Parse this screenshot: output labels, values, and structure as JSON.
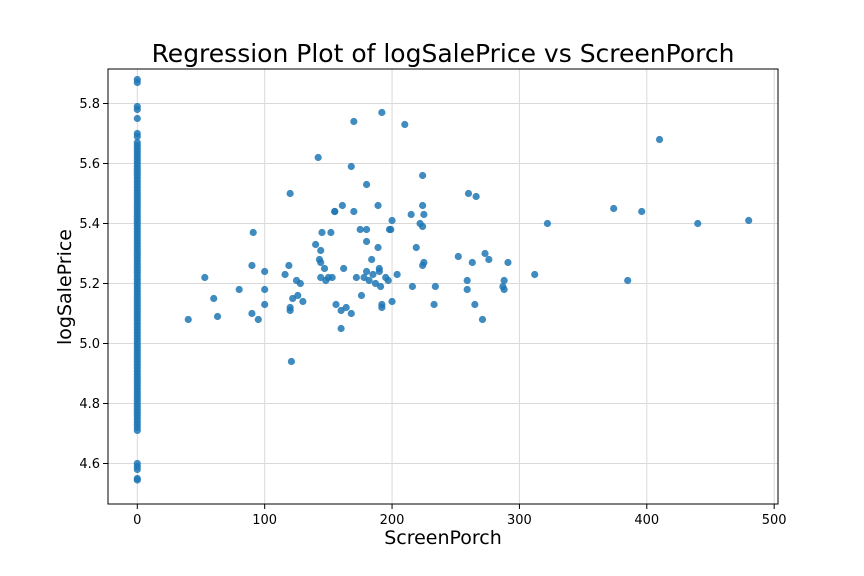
{
  "chart_data": {
    "type": "scatter",
    "title": "Regression Plot of logSalePrice vs ScreenPorch",
    "xlabel": "ScreenPorch",
    "ylabel": "logSalePrice",
    "xlim": [
      -23,
      503
    ],
    "ylim": [
      4.465,
      5.915
    ],
    "xticks": [
      0,
      100,
      200,
      300,
      400,
      500
    ],
    "yticks": [
      4.6,
      4.8,
      5.0,
      5.2,
      5.4,
      5.6,
      5.8
    ],
    "ytick_labels": [
      "4.6",
      "4.8",
      "5.0",
      "5.2",
      "5.4",
      "5.6",
      "5.8"
    ],
    "grid": true,
    "point_color": "#1f77b4",
    "zero_column": {
      "x": 0,
      "y_range": [
        4.72,
        5.67
      ],
      "outliers": [
        5.88,
        5.87,
        5.79,
        5.78,
        5.75,
        5.7,
        5.69,
        4.71,
        4.6,
        4.59,
        4.58,
        4.55,
        4.545
      ]
    },
    "points": [
      [
        40,
        5.08
      ],
      [
        53,
        5.22
      ],
      [
        60,
        5.15
      ],
      [
        63,
        5.09
      ],
      [
        80,
        5.18
      ],
      [
        90,
        5.26
      ],
      [
        90,
        5.1
      ],
      [
        91,
        5.37
      ],
      [
        95,
        5.08
      ],
      [
        100,
        5.24
      ],
      [
        100,
        5.18
      ],
      [
        100,
        5.13
      ],
      [
        116,
        5.23
      ],
      [
        119,
        5.26
      ],
      [
        120,
        5.5
      ],
      [
        120,
        5.12
      ],
      [
        120,
        5.11
      ],
      [
        121,
        4.94
      ],
      [
        122,
        5.15
      ],
      [
        125,
        5.21
      ],
      [
        126,
        5.16
      ],
      [
        128,
        5.2
      ],
      [
        130,
        5.14
      ],
      [
        140,
        5.33
      ],
      [
        142,
        5.62
      ],
      [
        143,
        5.28
      ],
      [
        144,
        5.31
      ],
      [
        144,
        5.27
      ],
      [
        144,
        5.22
      ],
      [
        145,
        5.37
      ],
      [
        147,
        5.25
      ],
      [
        148,
        5.21
      ],
      [
        150,
        5.22
      ],
      [
        152,
        5.37
      ],
      [
        153,
        5.22
      ],
      [
        155,
        5.44
      ],
      [
        155,
        5.44
      ],
      [
        156,
        5.13
      ],
      [
        160,
        5.11
      ],
      [
        160,
        5.05
      ],
      [
        161,
        5.46
      ],
      [
        162,
        5.25
      ],
      [
        164,
        5.12
      ],
      [
        168,
        5.59
      ],
      [
        168,
        5.1
      ],
      [
        170,
        5.74
      ],
      [
        170,
        5.44
      ],
      [
        172,
        5.22
      ],
      [
        175,
        5.38
      ],
      [
        176,
        5.16
      ],
      [
        178,
        5.22
      ],
      [
        180,
        5.53
      ],
      [
        180,
        5.38
      ],
      [
        180,
        5.34
      ],
      [
        180,
        5.24
      ],
      [
        182,
        5.21
      ],
      [
        184,
        5.28
      ],
      [
        185,
        5.23
      ],
      [
        187,
        5.2
      ],
      [
        189,
        5.46
      ],
      [
        189,
        5.32
      ],
      [
        190,
        5.25
      ],
      [
        190,
        5.24
      ],
      [
        191,
        5.19
      ],
      [
        192,
        5.77
      ],
      [
        192,
        5.13
      ],
      [
        192,
        5.12
      ],
      [
        195,
        5.22
      ],
      [
        197,
        5.21
      ],
      [
        198,
        5.38
      ],
      [
        199,
        5.38
      ],
      [
        200,
        5.41
      ],
      [
        200,
        5.14
      ],
      [
        204,
        5.23
      ],
      [
        210,
        5.73
      ],
      [
        215,
        5.43
      ],
      [
        216,
        5.19
      ],
      [
        219,
        5.32
      ],
      [
        222,
        5.4
      ],
      [
        224,
        5.56
      ],
      [
        224,
        5.46
      ],
      [
        224,
        5.39
      ],
      [
        224,
        5.26
      ],
      [
        225,
        5.43
      ],
      [
        225,
        5.27
      ],
      [
        233,
        5.13
      ],
      [
        234,
        5.19
      ],
      [
        252,
        5.29
      ],
      [
        259,
        5.21
      ],
      [
        259,
        5.18
      ],
      [
        260,
        5.5
      ],
      [
        263,
        5.27
      ],
      [
        265,
        5.13
      ],
      [
        266,
        5.49
      ],
      [
        271,
        5.08
      ],
      [
        273,
        5.3
      ],
      [
        276,
        5.28
      ],
      [
        287,
        5.19
      ],
      [
        288,
        5.21
      ],
      [
        288,
        5.18
      ],
      [
        291,
        5.27
      ],
      [
        312,
        5.23
      ],
      [
        322,
        5.4
      ],
      [
        374,
        5.45
      ],
      [
        385,
        5.21
      ],
      [
        396,
        5.44
      ],
      [
        410,
        5.68
      ],
      [
        440,
        5.4
      ],
      [
        480,
        5.41
      ]
    ]
  }
}
